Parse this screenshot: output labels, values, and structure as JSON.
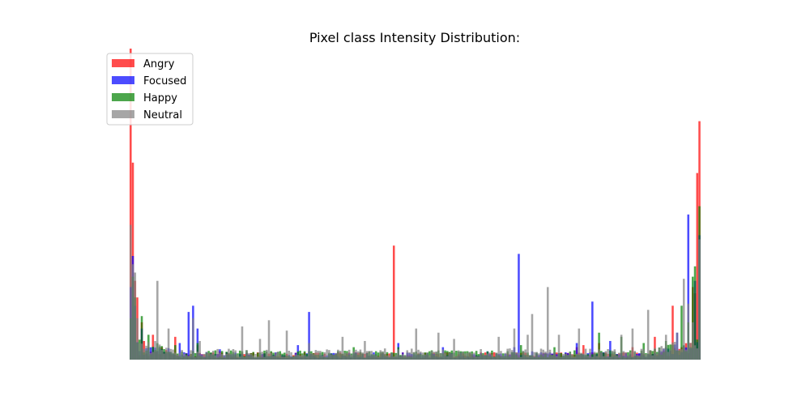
{
  "chart_data": {
    "type": "bar",
    "title": "Pixel class Intensity Distribution:",
    "xlabel": "",
    "ylabel": "",
    "x_range": [
      0,
      255
    ],
    "y_range": [
      0,
      1500
    ],
    "axes_visible": false,
    "grid": false,
    "legend_position": "top-left",
    "series": [
      {
        "name": "Angry",
        "color": "#ff0000",
        "opacity": 0.7,
        "peaks": [
          [
            0,
            1500
          ],
          [
            1,
            950
          ],
          [
            2,
            380
          ],
          [
            3,
            300
          ],
          [
            5,
            180
          ],
          [
            6,
            90
          ],
          [
            10,
            120
          ],
          [
            14,
            60
          ],
          [
            20,
            110
          ],
          [
            30,
            70
          ],
          [
            40,
            40
          ],
          [
            50,
            30
          ],
          [
            60,
            30
          ],
          [
            80,
            20
          ],
          [
            110,
            15
          ],
          [
            118,
            550
          ],
          [
            150,
            20
          ],
          [
            180,
            20
          ],
          [
            200,
            60
          ],
          [
            203,
            70
          ],
          [
            210,
            80
          ],
          [
            225,
            60
          ],
          [
            235,
            110
          ],
          [
            243,
            260
          ],
          [
            247,
            60
          ],
          [
            252,
            350
          ],
          [
            253,
            320
          ],
          [
            254,
            900
          ],
          [
            255,
            1150
          ]
        ],
        "baseline": 20
      },
      {
        "name": "Focused",
        "color": "#0000ff",
        "opacity": 0.7,
        "peaks": [
          [
            0,
            350
          ],
          [
            1,
            500
          ],
          [
            2,
            260
          ],
          [
            5,
            150
          ],
          [
            10,
            60
          ],
          [
            22,
            80
          ],
          [
            26,
            230
          ],
          [
            28,
            260
          ],
          [
            30,
            150
          ],
          [
            40,
            50
          ],
          [
            60,
            30
          ],
          [
            75,
            70
          ],
          [
            80,
            230
          ],
          [
            100,
            30
          ],
          [
            120,
            80
          ],
          [
            140,
            60
          ],
          [
            160,
            40
          ],
          [
            172,
            60
          ],
          [
            174,
            510
          ],
          [
            180,
            40
          ],
          [
            200,
            80
          ],
          [
            207,
            280
          ],
          [
            215,
            90
          ],
          [
            235,
            30
          ],
          [
            240,
            60
          ],
          [
            245,
            130
          ],
          [
            250,
            700
          ],
          [
            253,
            380
          ],
          [
            255,
            600
          ]
        ],
        "baseline": 20
      },
      {
        "name": "Happy",
        "color": "#008000",
        "opacity": 0.7,
        "peaks": [
          [
            0,
            200
          ],
          [
            1,
            400
          ],
          [
            2,
            300
          ],
          [
            5,
            210
          ],
          [
            8,
            120
          ],
          [
            20,
            70
          ],
          [
            30,
            80
          ],
          [
            50,
            40
          ],
          [
            70,
            20
          ],
          [
            80,
            40
          ],
          [
            100,
            60
          ],
          [
            120,
            60
          ],
          [
            140,
            30
          ],
          [
            160,
            40
          ],
          [
            175,
            70
          ],
          [
            190,
            60
          ],
          [
            210,
            130
          ],
          [
            220,
            110
          ],
          [
            230,
            80
          ],
          [
            240,
            90
          ],
          [
            247,
            260
          ],
          [
            250,
            180
          ],
          [
            252,
            400
          ],
          [
            253,
            450
          ],
          [
            255,
            740
          ]
        ],
        "baseline": 25
      },
      {
        "name": "Neutral",
        "color": "#808080",
        "opacity": 0.7,
        "peaks": [
          [
            0,
            650
          ],
          [
            1,
            460
          ],
          [
            2,
            420
          ],
          [
            3,
            200
          ],
          [
            12,
            380
          ],
          [
            17,
            150
          ],
          [
            28,
            200
          ],
          [
            31,
            90
          ],
          [
            50,
            160
          ],
          [
            58,
            100
          ],
          [
            62,
            190
          ],
          [
            70,
            140
          ],
          [
            80,
            80
          ],
          [
            95,
            110
          ],
          [
            105,
            90
          ],
          [
            128,
            150
          ],
          [
            138,
            130
          ],
          [
            145,
            100
          ],
          [
            165,
            110
          ],
          [
            172,
            150
          ],
          [
            178,
            120
          ],
          [
            180,
            220
          ],
          [
            187,
            350
          ],
          [
            192,
            120
          ],
          [
            201,
            150
          ],
          [
            220,
            120
          ],
          [
            225,
            150
          ],
          [
            232,
            240
          ],
          [
            240,
            120
          ],
          [
            245,
            130
          ],
          [
            248,
            390
          ],
          [
            250,
            270
          ],
          [
            252,
            180
          ],
          [
            255,
            580
          ]
        ],
        "baseline": 30
      }
    ]
  }
}
